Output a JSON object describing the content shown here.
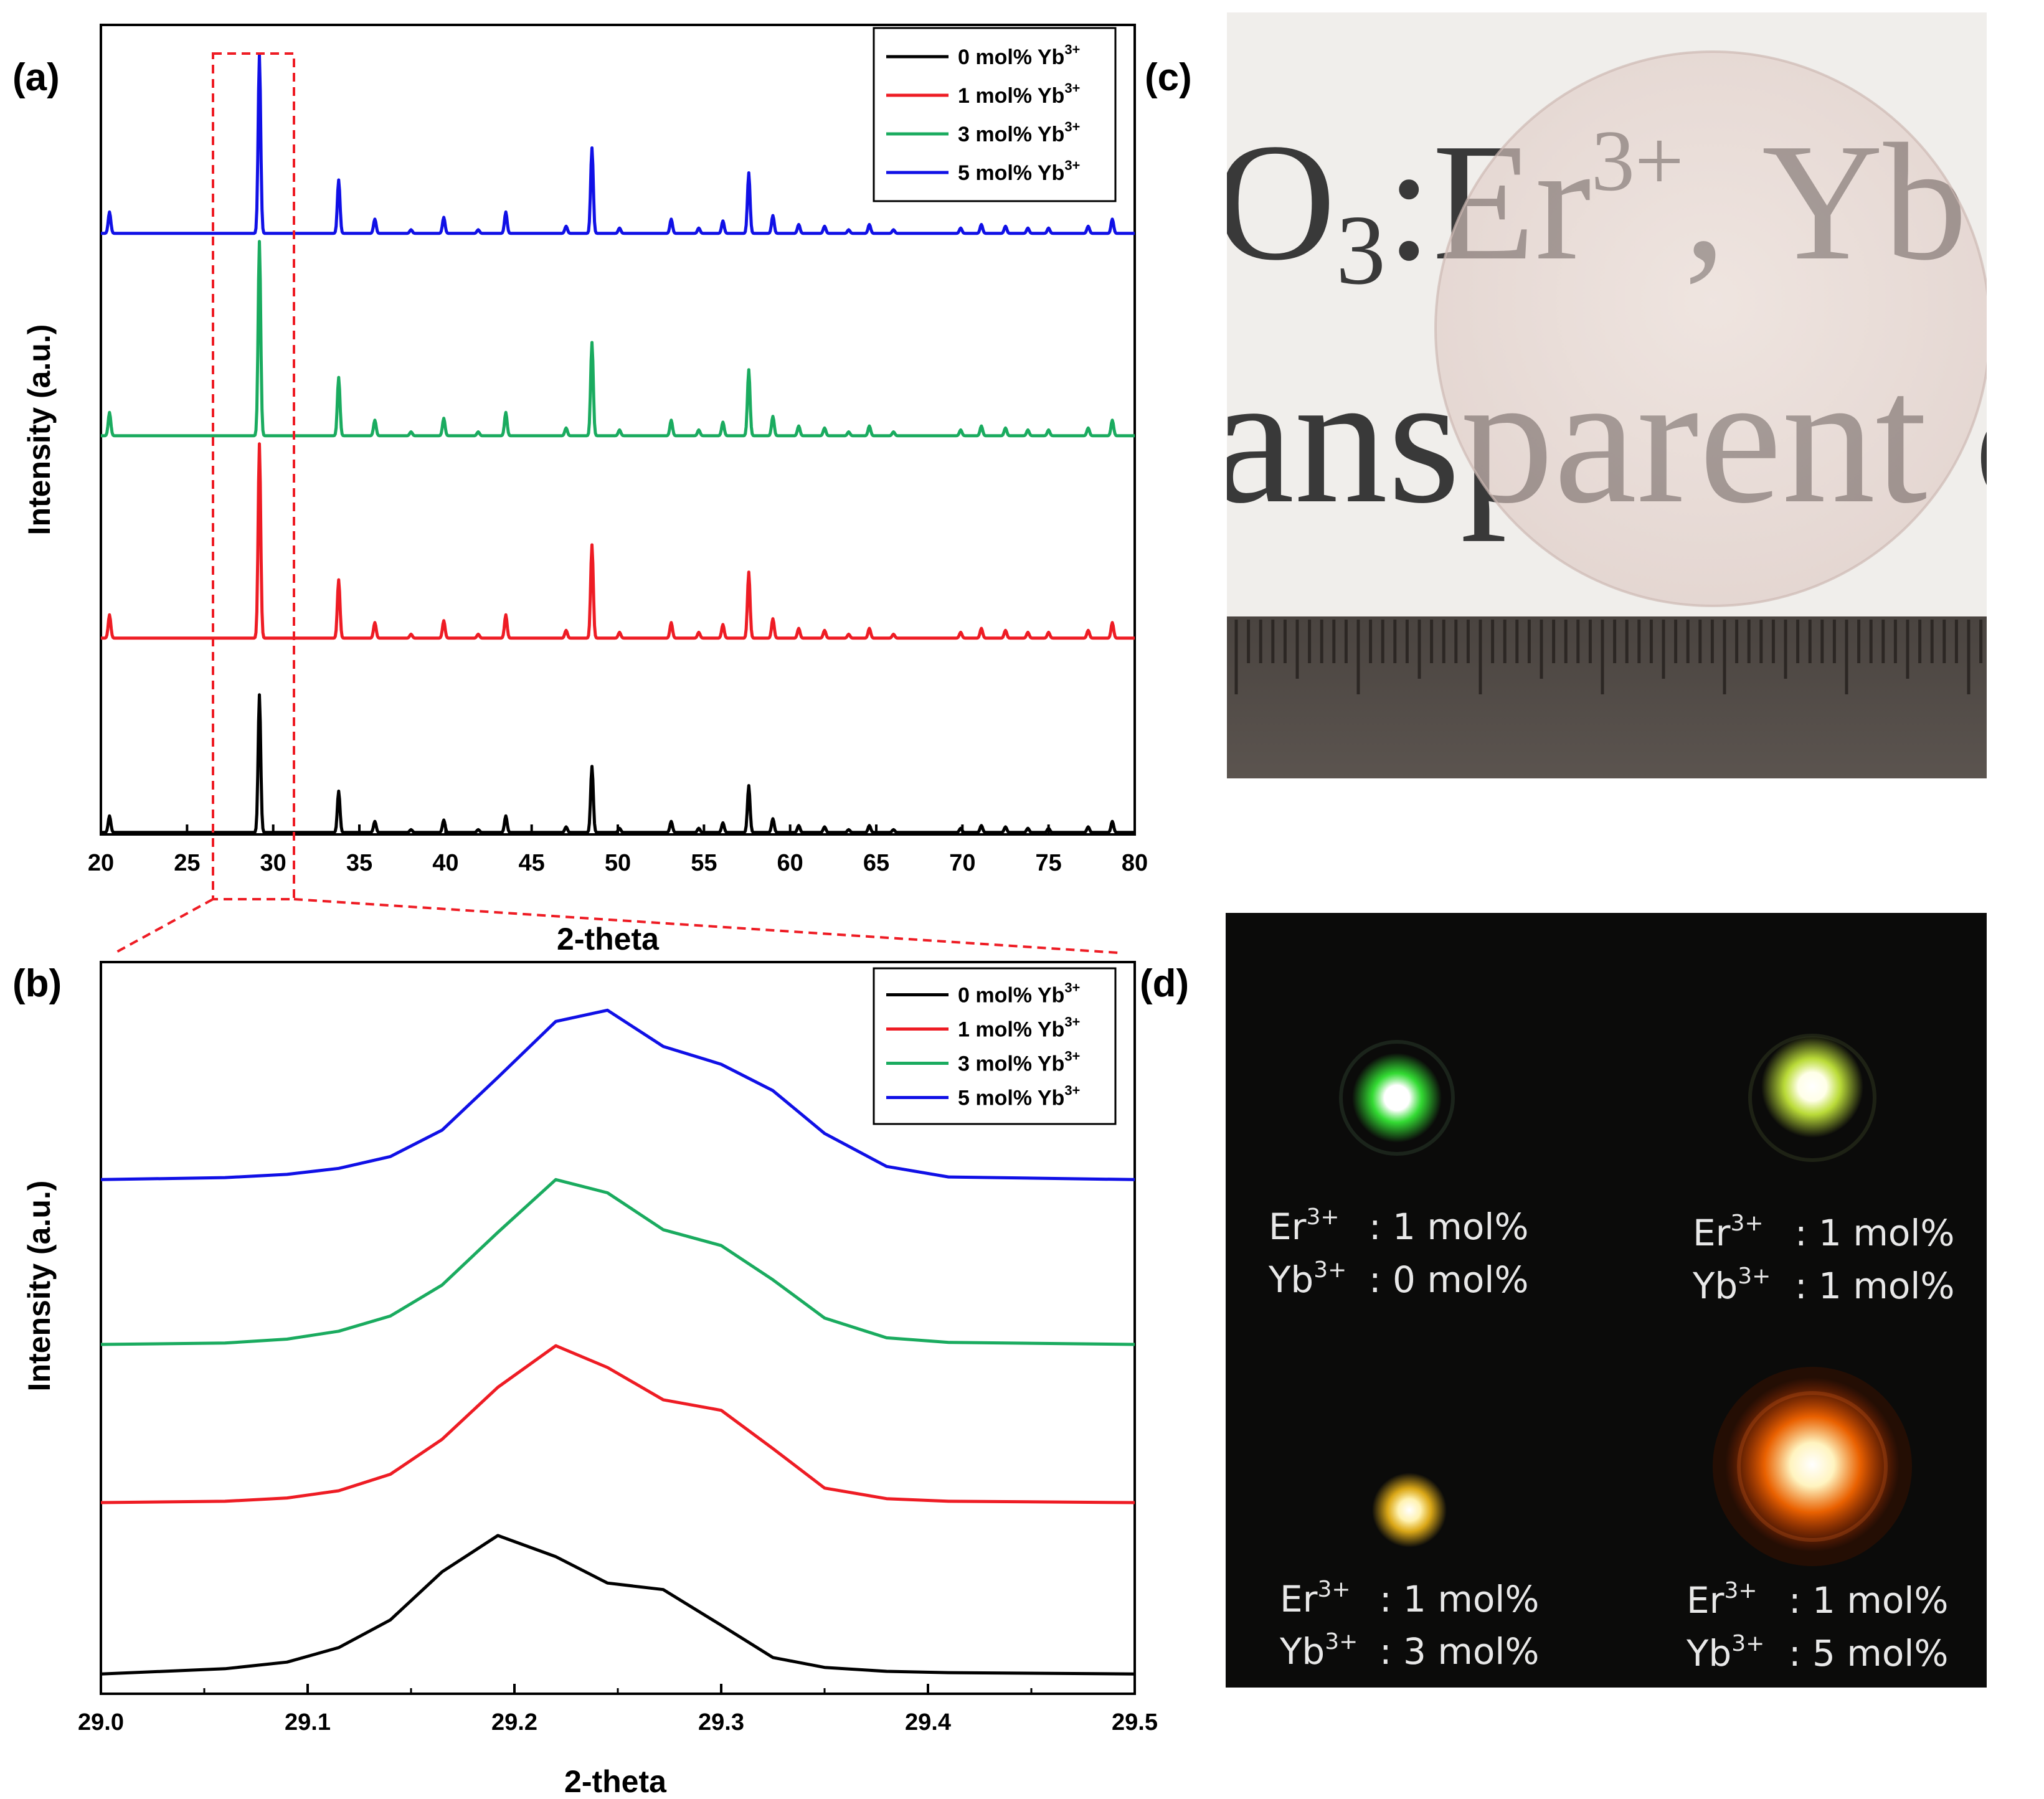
{
  "panel_labels": {
    "a": "(a)",
    "b": "(b)",
    "c": "(c)",
    "d": "(d)"
  },
  "colors": {
    "s0": "#000000",
    "s1": "#ee1c24",
    "s2": "#1aab5f",
    "s3": "#1010e6",
    "zoom_box": "#ee1c24"
  },
  "chart_data": [
    {
      "id": "a",
      "type": "line",
      "title": "",
      "xlabel": "2-theta",
      "ylabel": "Intensity (a.u.)",
      "xlim": [
        20,
        80
      ],
      "ylim": [
        0,
        100
      ],
      "xticks": [
        20,
        25,
        30,
        35,
        40,
        45,
        50,
        55,
        60,
        65,
        70,
        75,
        80
      ],
      "legend_position": "top-right",
      "zoom_region_x": [
        26.5,
        31.3
      ],
      "peaks_two_theta": [
        20.5,
        29.2,
        33.8,
        35.9,
        38.0,
        39.9,
        41.9,
        43.5,
        47.0,
        48.5,
        50.1,
        53.1,
        54.7,
        56.1,
        57.6,
        59.0,
        60.5,
        62.0,
        63.4,
        64.6,
        66.0,
        69.9,
        71.1,
        72.5,
        73.8,
        75.0,
        77.3,
        78.7
      ],
      "peak_relative_heights": [
        0.12,
        1.0,
        0.3,
        0.08,
        0.02,
        0.09,
        0.02,
        0.12,
        0.04,
        0.48,
        0.03,
        0.08,
        0.03,
        0.07,
        0.34,
        0.1,
        0.05,
        0.04,
        0.02,
        0.05,
        0.02,
        0.03,
        0.05,
        0.04,
        0.03,
        0.03,
        0.04,
        0.08
      ],
      "series": [
        {
          "name": "0 mol% Yb3+",
          "label": "0 mol% Yb",
          "sup": "3+",
          "color_key": "s0",
          "baseline": 0,
          "scale": 17
        },
        {
          "name": "1 mol% Yb3+",
          "label": "1 mol% Yb",
          "sup": "3+",
          "color_key": "s1",
          "baseline": 24,
          "scale": 24
        },
        {
          "name": "3 mol% Yb3+",
          "label": "3 mol% Yb",
          "sup": "3+",
          "color_key": "s2",
          "baseline": 49,
          "scale": 24
        },
        {
          "name": "5 mol% Yb3+",
          "label": "5 mol% Yb",
          "sup": "3+",
          "color_key": "s3",
          "baseline": 74,
          "scale": 22
        }
      ]
    },
    {
      "id": "b",
      "type": "line",
      "title": "",
      "xlabel": "2-theta",
      "ylabel": "Intensity (a.u.)",
      "xlim": [
        29.0,
        29.5
      ],
      "ylim": [
        0,
        100
      ],
      "xticks": [
        29.0,
        29.1,
        29.2,
        29.3,
        29.4,
        29.5
      ],
      "legend_position": "top-right",
      "series": [
        {
          "name": "0 mol% Yb3+",
          "label": "0 mol% Yb",
          "sup": "3+",
          "color_key": "s0",
          "x": [
            29.0,
            29.06,
            29.09,
            29.115,
            29.14,
            29.165,
            29.192,
            29.22,
            29.245,
            29.272,
            29.3,
            29.325,
            29.35,
            29.38,
            29.41,
            29.5
          ],
          "y": [
            0.0,
            0.8,
            1.8,
            4.0,
            8.2,
            15.5,
            21.0,
            17.8,
            13.8,
            12.8,
            7.4,
            2.5,
            1.0,
            0.4,
            0.2,
            0.0
          ]
        },
        {
          "name": "1 mol% Yb3+",
          "label": "1 mol% Yb",
          "sup": "3+",
          "color_key": "s1",
          "x": [
            29.0,
            29.06,
            29.09,
            29.115,
            29.14,
            29.165,
            29.192,
            29.22,
            29.245,
            29.272,
            29.3,
            29.325,
            29.35,
            29.38,
            29.41,
            29.5
          ],
          "y": [
            26.0,
            26.2,
            26.7,
            27.8,
            30.3,
            35.6,
            43.5,
            49.8,
            46.5,
            41.6,
            40.0,
            34.2,
            28.2,
            26.6,
            26.2,
            26.0
          ]
        },
        {
          "name": "3 mol% Yb3+",
          "label": "3 mol% Yb",
          "sup": "3+",
          "color_key": "s2",
          "x": [
            29.0,
            29.06,
            29.09,
            29.115,
            29.14,
            29.165,
            29.192,
            29.22,
            29.245,
            29.272,
            29.3,
            29.325,
            29.35,
            29.38,
            29.41,
            29.5
          ],
          "y": [
            50.0,
            50.2,
            50.8,
            52.0,
            54.3,
            59.0,
            67.0,
            75.0,
            73.0,
            67.4,
            65.0,
            59.8,
            54.0,
            51.0,
            50.3,
            50.0
          ]
        },
        {
          "name": "5 mol% Yb3+",
          "label": "5 mol% Yb",
          "sup": "3+",
          "color_key": "s3",
          "x": [
            29.0,
            29.06,
            29.09,
            29.115,
            29.14,
            29.165,
            29.192,
            29.22,
            29.245,
            29.272,
            29.3,
            29.325,
            29.35,
            29.38,
            29.41,
            29.5
          ],
          "y": [
            75.0,
            75.3,
            75.8,
            76.7,
            78.5,
            82.5,
            90.5,
            99.0,
            100.7,
            95.2,
            92.5,
            88.5,
            82.0,
            77.0,
            75.4,
            75.0
          ]
        }
      ]
    }
  ],
  "photo_c": {
    "text_line1_a": "O",
    "text_line1_sub": "3",
    "text_line1_b": ":Er",
    "text_line1_sup": "3+",
    "text_line1_c": ", Yb",
    "text_line2": "ansparent c"
  },
  "photo_d": {
    "samples": [
      {
        "er_label": "Er",
        "er_sup": "3+",
        "er_value": ": 1 mol%",
        "yb_label": "Yb",
        "yb_sup": "3+",
        "yb_value": ": 0 mol%",
        "glow_color": "#3aff3a"
      },
      {
        "er_label": "Er",
        "er_sup": "3+",
        "er_value": ": 1 mol%",
        "yb_label": "Yb",
        "yb_sup": "3+",
        "yb_value": ": 1 mol%",
        "glow_color": "#d8ff40"
      },
      {
        "er_label": "Er",
        "er_sup": "3+",
        "er_value": ": 1 mol%",
        "yb_label": "Yb",
        "yb_sup": "3+",
        "yb_value": ": 3 mol%",
        "glow_color": "#ffc31a"
      },
      {
        "er_label": "Er",
        "er_sup": "3+",
        "er_value": ": 1 mol%",
        "yb_label": "Yb",
        "yb_sup": "3+",
        "yb_value": ": 5 mol%",
        "glow_color": "#ff6a00"
      }
    ]
  }
}
